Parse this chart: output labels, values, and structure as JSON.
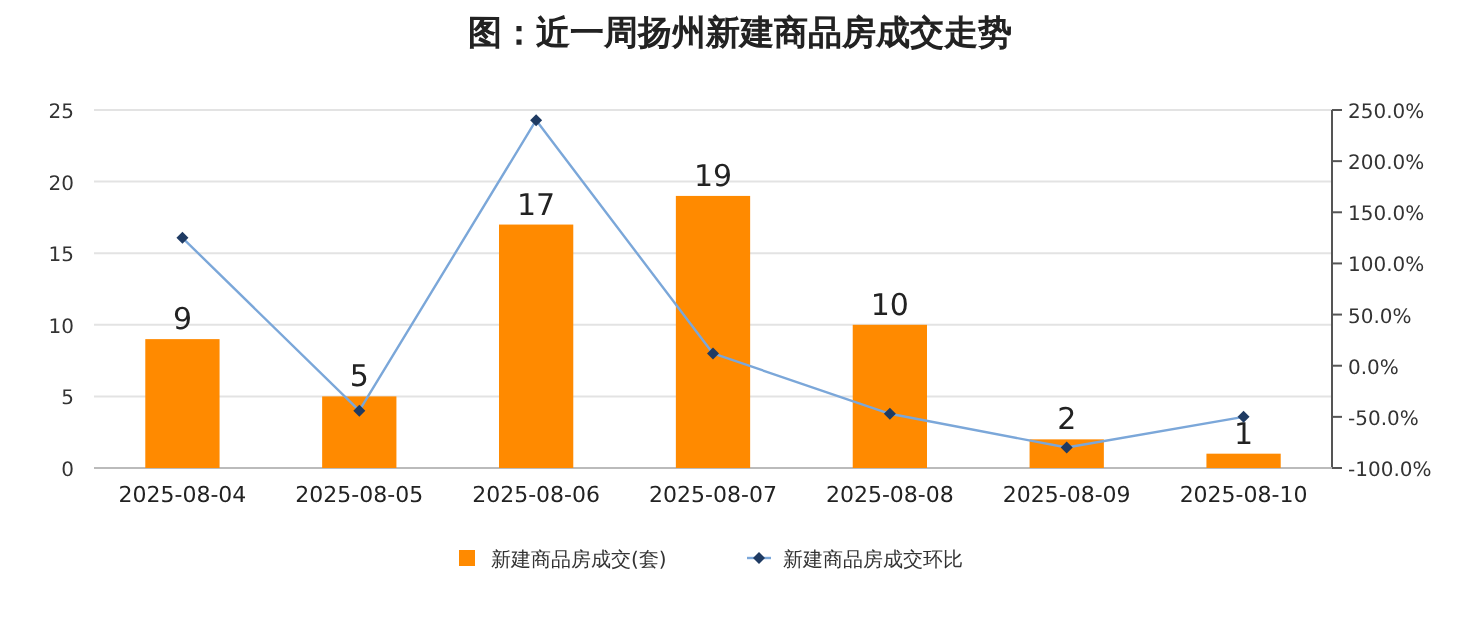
{
  "chart_data": {
    "type": "bar",
    "title": "图：近一周扬州新建商品房成交走势",
    "categories": [
      "2025-08-04",
      "2025-08-05",
      "2025-08-06",
      "2025-08-07",
      "2025-08-08",
      "2025-08-09",
      "2025-08-10"
    ],
    "series": [
      {
        "name": "新建商品房成交(套)",
        "color": "#ff8a00",
        "values": [
          9,
          5,
          17,
          19,
          10,
          2,
          1
        ],
        "value_labels": [
          "9",
          "5",
          "17",
          "19",
          "10",
          "2",
          "1"
        ]
      },
      {
        "name": "新建商品房成交环比",
        "type": "line",
        "axis": "y2",
        "color": "#7ba7d9",
        "marker": "diamond",
        "values": [
          125,
          -44,
          240,
          12,
          -47,
          -80,
          -50
        ]
      }
    ],
    "ylim": [
      0,
      25
    ],
    "yticks": [
      0,
      5,
      10,
      15,
      20,
      25
    ],
    "y2lim": [
      -100,
      250
    ],
    "y2ticks": [
      {
        "value": -100,
        "label": "-100.0%"
      },
      {
        "value": -50,
        "label": "-50.0%"
      },
      {
        "value": 0,
        "label": "0.0%"
      },
      {
        "value": 50,
        "label": "50.0%"
      },
      {
        "value": 100,
        "label": "100.0%"
      },
      {
        "value": 150,
        "label": "150.0%"
      },
      {
        "value": 200,
        "label": "200.0%"
      },
      {
        "value": 250,
        "label": "250.0%"
      }
    ],
    "grid": "y",
    "legend": "bottom"
  }
}
